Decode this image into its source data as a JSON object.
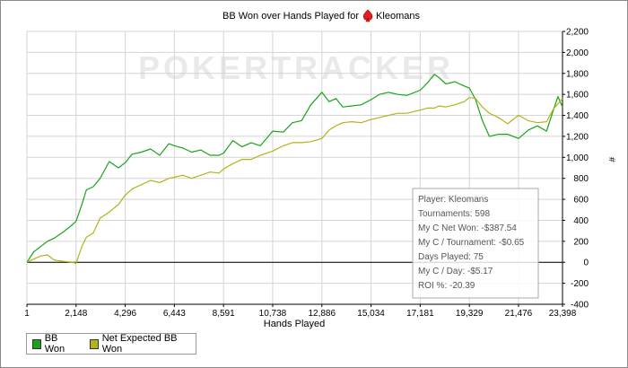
{
  "chart_data": {
    "type": "line",
    "title": "BB Won over Hands Played for",
    "player_name": "Kleomans",
    "xlabel": "Hands Played",
    "ylabel": "",
    "ylabel_glyph": "#",
    "watermark": "POKERTRACKER",
    "xlim": [
      1,
      23398
    ],
    "ylim": [
      -400,
      2200
    ],
    "x_ticks": [
      "1",
      "2,148",
      "4,296",
      "6,443",
      "8,591",
      "10,738",
      "12,886",
      "15,034",
      "17,181",
      "19,329",
      "21,476",
      "23,398"
    ],
    "x_tick_values": [
      1,
      2148,
      4296,
      6443,
      8591,
      10738,
      12886,
      15034,
      17181,
      19329,
      21476,
      23398
    ],
    "y_ticks": [
      "-400",
      "-200",
      "0",
      "200",
      "400",
      "600",
      "800",
      "1,000",
      "1,200",
      "1,400",
      "1,600",
      "1,800",
      "2,000",
      "2,200"
    ],
    "y_tick_values": [
      -400,
      -200,
      0,
      200,
      400,
      600,
      800,
      1000,
      1200,
      1400,
      1600,
      1800,
      2000,
      2200
    ],
    "grid": true,
    "legend_position": "bottom-left",
    "series": [
      {
        "name": "BB Won",
        "color": "#1aa31a",
        "x": [
          1,
          300,
          600,
          900,
          1200,
          1600,
          2000,
          2148,
          2400,
          2600,
          2900,
          3200,
          3600,
          4000,
          4296,
          4600,
          5000,
          5400,
          5800,
          6200,
          6443,
          6800,
          7200,
          7600,
          8000,
          8400,
          8591,
          9000,
          9400,
          9800,
          10200,
          10738,
          11200,
          11600,
          12000,
          12400,
          12886,
          13200,
          13500,
          13800,
          14200,
          14600,
          15034,
          15400,
          15800,
          16200,
          16600,
          17181,
          17500,
          17800,
          18000,
          18300,
          18700,
          19100,
          19329,
          19600,
          19900,
          20200,
          20600,
          21000,
          21476,
          21900,
          22300,
          22700,
          23000,
          23200,
          23398
        ],
        "values": [
          0,
          100,
          150,
          200,
          230,
          290,
          360,
          390,
          550,
          690,
          720,
          800,
          960,
          900,
          950,
          1030,
          1050,
          1080,
          1020,
          1130,
          1110,
          1090,
          1050,
          1070,
          1020,
          1020,
          1040,
          1160,
          1100,
          1140,
          1110,
          1250,
          1240,
          1330,
          1350,
          1500,
          1620,
          1530,
          1560,
          1480,
          1490,
          1500,
          1550,
          1600,
          1620,
          1600,
          1590,
          1640,
          1710,
          1790,
          1760,
          1700,
          1720,
          1680,
          1660,
          1550,
          1350,
          1200,
          1220,
          1220,
          1180,
          1260,
          1300,
          1250,
          1450,
          1580,
          1480
        ]
      },
      {
        "name": "Net Expected BB Won",
        "color": "#b3b31a",
        "x": [
          1,
          300,
          600,
          900,
          1200,
          1600,
          2000,
          2148,
          2400,
          2600,
          2900,
          3200,
          3600,
          4000,
          4296,
          4600,
          5000,
          5400,
          5800,
          6200,
          6443,
          6800,
          7200,
          7600,
          8000,
          8400,
          8591,
          9000,
          9400,
          9800,
          10200,
          10738,
          11200,
          11600,
          12000,
          12400,
          12886,
          13200,
          13500,
          13800,
          14200,
          14600,
          15034,
          15400,
          15800,
          16200,
          16600,
          17181,
          17500,
          17800,
          18000,
          18300,
          18700,
          19100,
          19329,
          19600,
          19900,
          20200,
          20600,
          21000,
          21476,
          21900,
          22300,
          22700,
          23000,
          23200,
          23398
        ],
        "values": [
          0,
          30,
          60,
          70,
          20,
          10,
          0,
          -10,
          150,
          240,
          280,
          420,
          480,
          550,
          640,
          700,
          740,
          780,
          760,
          800,
          810,
          830,
          800,
          830,
          860,
          850,
          890,
          940,
          980,
          980,
          1020,
          1060,
          1110,
          1140,
          1140,
          1150,
          1180,
          1260,
          1300,
          1330,
          1340,
          1330,
          1360,
          1380,
          1400,
          1420,
          1420,
          1450,
          1470,
          1470,
          1490,
          1480,
          1500,
          1530,
          1570,
          1560,
          1480,
          1420,
          1380,
          1320,
          1400,
          1350,
          1330,
          1340,
          1460,
          1510,
          1560
        ]
      }
    ]
  },
  "stats": {
    "lines": [
      "Player: Kleomans",
      "Tournaments: 598",
      "My C Net Won: -$387.54",
      "My C / Tournament: -$0.65",
      "Days Played: 75",
      "My C / Day: -$5.17",
      "ROI %: -20.39"
    ]
  },
  "legend": {
    "items": [
      {
        "label": "BB Won",
        "color": "#1aa31a"
      },
      {
        "label": "Net Expected BB Won",
        "color": "#b3b31a"
      }
    ]
  }
}
